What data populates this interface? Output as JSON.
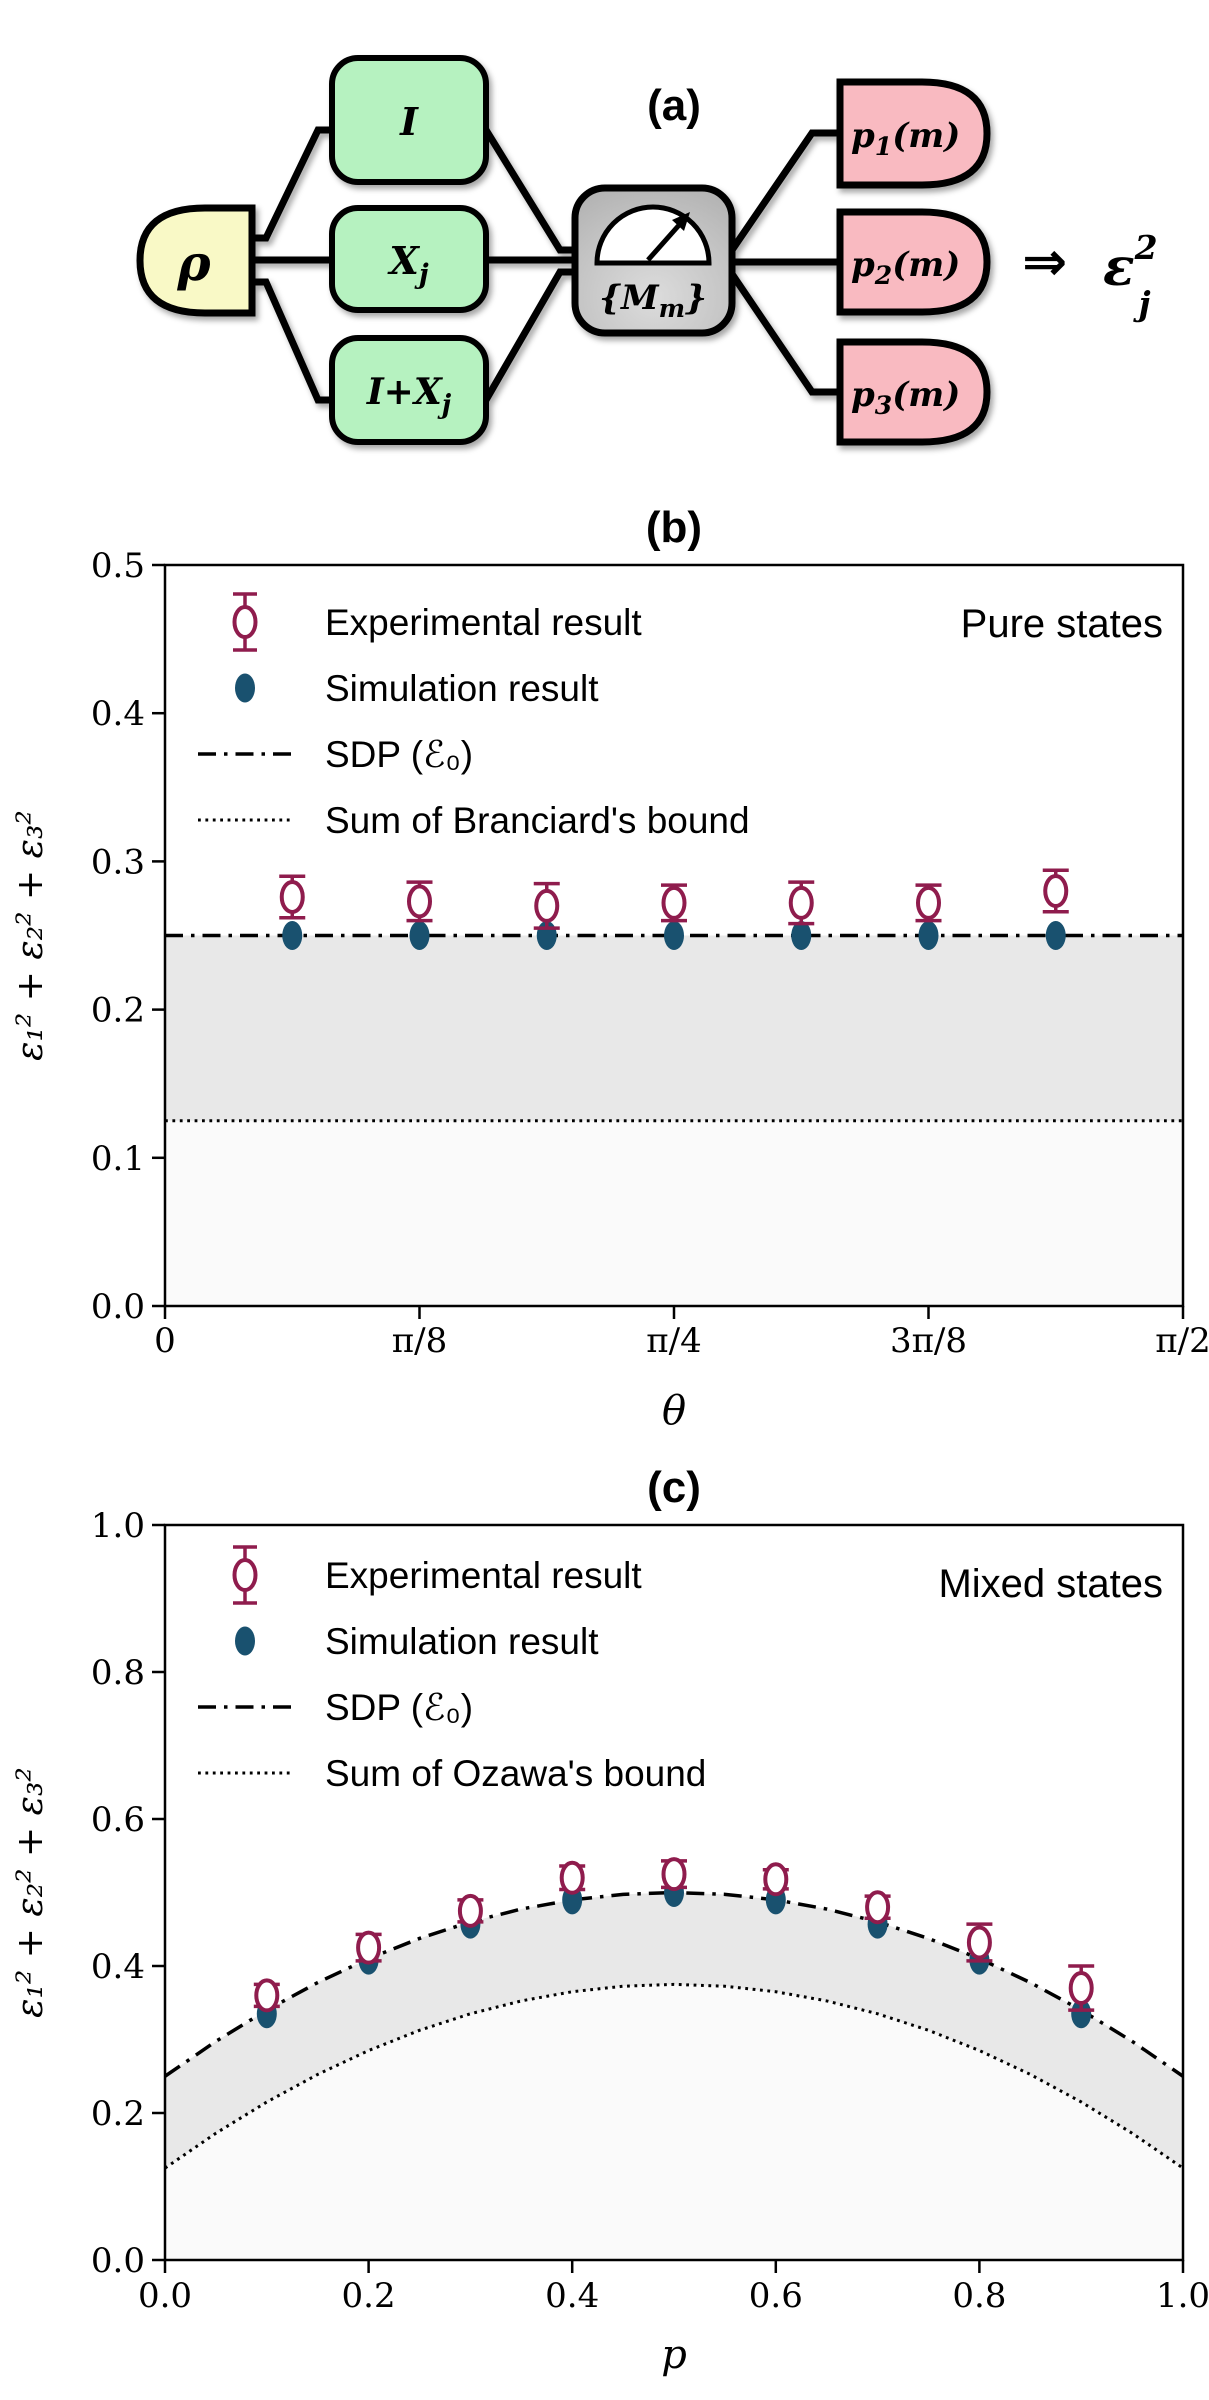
{
  "panel_a": {
    "title": "(a)",
    "state_label": "ρ",
    "gates": {
      "identity": "I",
      "xj": {
        "pre": "X",
        "sub": "j"
      },
      "ixj": {
        "pre": "I+X",
        "sub": "j"
      }
    },
    "measurement": {
      "pre": "{M",
      "sub": "m",
      "post": "}"
    },
    "detectors": [
      {
        "pre": "p",
        "sub": "1",
        "post": "(m)"
      },
      {
        "pre": "p",
        "sub": "2",
        "post": "(m)"
      },
      {
        "pre": "p",
        "sub": "3",
        "post": "(m)"
      }
    ],
    "implies": "⇒",
    "result": {
      "base": "ε",
      "sup": "2",
      "sub": "j"
    },
    "colors": {
      "state_fill": "#f9f9c6",
      "gate_fill": "#b6f2c0",
      "meter_fill_light": "#d4d4d4",
      "meter_fill_dark": "#b0b0b0",
      "detector_fill": "#f9bac1",
      "outline": "#000000"
    }
  },
  "chart_data": [
    {
      "panel": "b",
      "type": "scatter",
      "title": "(b)",
      "corner_label": "Pure states",
      "xlabel": "θ",
      "ylabel": "ε₁² + ε₂² + ε₃²",
      "xlim": [
        0,
        0.5
      ],
      "ylim": [
        0,
        0.5
      ],
      "x_unit": "θ/π",
      "grid": false,
      "legend_position": "upper left",
      "xticks": [
        {
          "v": 0,
          "label": "0"
        },
        {
          "v": 0.125,
          "label": "π/8"
        },
        {
          "v": 0.25,
          "label": "π/4"
        },
        {
          "v": 0.375,
          "label": "3π/8"
        },
        {
          "v": 0.5,
          "label": "π/2"
        }
      ],
      "yticks": [
        {
          "v": 0.0,
          "label": "0.0"
        },
        {
          "v": 0.1,
          "label": "0.1"
        },
        {
          "v": 0.2,
          "label": "0.2"
        },
        {
          "v": 0.3,
          "label": "0.3"
        },
        {
          "v": 0.4,
          "label": "0.4"
        },
        {
          "v": 0.5,
          "label": "0.5"
        }
      ],
      "series": [
        {
          "name": "Experimental result",
          "type": "errorbar",
          "color": "#8f1c4d",
          "x": [
            0.0625,
            0.125,
            0.1875,
            0.25,
            0.3125,
            0.375,
            0.4375
          ],
          "y": [
            0.276,
            0.273,
            0.27,
            0.272,
            0.272,
            0.272,
            0.28
          ],
          "yerr": [
            0.014,
            0.013,
            0.015,
            0.012,
            0.014,
            0.012,
            0.014
          ]
        },
        {
          "name": "Simulation result",
          "type": "dot",
          "color": "#19516f",
          "x": [
            0.0625,
            0.125,
            0.1875,
            0.25,
            0.3125,
            0.375,
            0.4375
          ],
          "y": [
            0.25,
            0.25,
            0.25,
            0.25,
            0.25,
            0.25,
            0.25
          ]
        },
        {
          "name": "SDP (ℰ₀)",
          "type": "dashdot",
          "color": "#000000",
          "curve_x": [
            0,
            0.5
          ],
          "curve_y": [
            0.25,
            0.25
          ]
        },
        {
          "name": "Sum of Branciard's bound",
          "type": "dotted",
          "color": "#000000",
          "curve_x": [
            0,
            0.5
          ],
          "curve_y": [
            0.125,
            0.125
          ]
        }
      ],
      "shading": {
        "between_color": "#e8e8e8",
        "below_color": "#fafafa"
      }
    },
    {
      "panel": "c",
      "type": "scatter",
      "title": "(c)",
      "corner_label": "Mixed states",
      "xlabel": "p",
      "ylabel": "ε₁² + ε₂² + ε₃²",
      "xlim": [
        0,
        1.0
      ],
      "ylim": [
        0,
        1.0
      ],
      "x_unit": "p",
      "grid": false,
      "legend_position": "upper left",
      "xticks": [
        {
          "v": 0.0,
          "label": "0.0"
        },
        {
          "v": 0.2,
          "label": "0.2"
        },
        {
          "v": 0.4,
          "label": "0.4"
        },
        {
          "v": 0.6,
          "label": "0.6"
        },
        {
          "v": 0.8,
          "label": "0.8"
        },
        {
          "v": 1.0,
          "label": "1.0"
        }
      ],
      "yticks": [
        {
          "v": 0.0,
          "label": "0.0"
        },
        {
          "v": 0.2,
          "label": "0.2"
        },
        {
          "v": 0.4,
          "label": "0.4"
        },
        {
          "v": 0.6,
          "label": "0.6"
        },
        {
          "v": 0.8,
          "label": "0.8"
        },
        {
          "v": 1.0,
          "label": "1.0"
        }
      ],
      "series": [
        {
          "name": "Experimental result",
          "type": "errorbar",
          "color": "#8f1c4d",
          "x": [
            0.1,
            0.2,
            0.3,
            0.4,
            0.5,
            0.6,
            0.7,
            0.8,
            0.9
          ],
          "y": [
            0.36,
            0.425,
            0.475,
            0.52,
            0.525,
            0.518,
            0.48,
            0.432,
            0.37
          ],
          "yerr": [
            0.015,
            0.018,
            0.015,
            0.016,
            0.018,
            0.013,
            0.015,
            0.025,
            0.03
          ]
        },
        {
          "name": "Simulation result",
          "type": "dot",
          "color": "#19516f",
          "x": [
            0.1,
            0.2,
            0.3,
            0.4,
            0.5,
            0.6,
            0.7,
            0.8,
            0.9
          ],
          "y": [
            0.335,
            0.408,
            0.457,
            0.49,
            0.5,
            0.49,
            0.457,
            0.408,
            0.335
          ]
        },
        {
          "name": "SDP (ℰ₀)",
          "type": "dashdot",
          "color": "#000000",
          "curve_x": [
            0,
            0.05,
            0.1,
            0.15,
            0.2,
            0.25,
            0.3,
            0.35,
            0.4,
            0.45,
            0.5,
            0.55,
            0.6,
            0.65,
            0.7,
            0.75,
            0.8,
            0.85,
            0.9,
            0.95,
            1.0
          ],
          "curve_y": [
            0.25,
            0.2975,
            0.34,
            0.3775,
            0.41,
            0.4375,
            0.46,
            0.4775,
            0.49,
            0.4975,
            0.5,
            0.4975,
            0.49,
            0.4775,
            0.46,
            0.4375,
            0.41,
            0.3775,
            0.34,
            0.2975,
            0.25
          ]
        },
        {
          "name": "Sum of Ozawa's bound",
          "type": "dotted",
          "color": "#000000",
          "curve_x": [
            0,
            0.05,
            0.1,
            0.15,
            0.2,
            0.25,
            0.3,
            0.35,
            0.4,
            0.45,
            0.5,
            0.55,
            0.6,
            0.65,
            0.7,
            0.75,
            0.8,
            0.85,
            0.9,
            0.95,
            1.0
          ],
          "curve_y": [
            0.125,
            0.1725,
            0.215,
            0.2525,
            0.285,
            0.3125,
            0.335,
            0.3525,
            0.365,
            0.3725,
            0.375,
            0.3725,
            0.365,
            0.3525,
            0.335,
            0.3125,
            0.285,
            0.2525,
            0.215,
            0.1725,
            0.125
          ]
        }
      ],
      "shading": {
        "between_color": "#e8e8e8",
        "below_color": "#fafafa"
      }
    }
  ]
}
